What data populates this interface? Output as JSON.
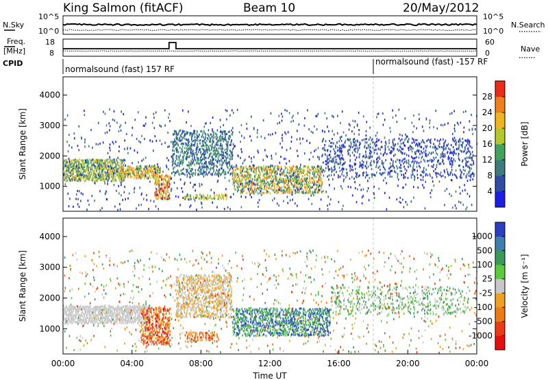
{
  "header": {
    "station": "King Salmon (fitACF)",
    "beam": "Beam 10",
    "date": "20/May/2012"
  },
  "status_panel": {
    "left_labels": {
      "nsky": "N.Sky",
      "freq": "Freq.",
      "freq_unit": "[MHz]",
      "cpid": "CPID"
    },
    "right_labels": {
      "nsearch": "N.Search",
      "nave": "Nave"
    },
    "noise_ticks_left": [
      "10^5",
      "10^0"
    ],
    "noise_ticks_right": [
      "10^5",
      "10^0"
    ],
    "freq_ticks": [
      "18",
      "8"
    ],
    "nave_ticks": [
      "60",
      "0"
    ],
    "cpid_segments": [
      {
        "label": "normalsound (fast) 157 RF",
        "start_hour": 0
      },
      {
        "label": "normalsound (fast) -157 RF",
        "start_hour": 18.0
      }
    ],
    "freq_spike": {
      "start_hour": 6.15,
      "end_hour": 6.55
    }
  },
  "chart_data": [
    {
      "type": "heatmap",
      "name": "Power",
      "ylabel": "Slant Range [km]",
      "ylim": [
        180,
        4600
      ],
      "yticks": [
        "1000",
        "2000",
        "3000",
        "4000"
      ],
      "colorbar": {
        "label": "Power [dB]",
        "ticks": [
          "4",
          "8",
          "12",
          "16",
          "20",
          "24",
          "28"
        ],
        "colors": [
          "#1d1de8",
          "#2e4ea6",
          "#3d7c7c",
          "#44a35a",
          "#b6c72a",
          "#f0b41c",
          "#f08018",
          "#ee2a18"
        ]
      },
      "scatter_regions": [
        {
          "t0": 0.0,
          "t1": 3.5,
          "r0": 1200,
          "r1": 1900,
          "density": 0.75,
          "level": [
            2,
            5
          ]
        },
        {
          "t0": 3.3,
          "t1": 5.6,
          "r0": 1300,
          "r1": 1700,
          "density": 0.7,
          "level": [
            3,
            6
          ]
        },
        {
          "t0": 5.3,
          "t1": 6.2,
          "r0": 600,
          "r1": 1400,
          "density": 0.6,
          "level": [
            4,
            7
          ]
        },
        {
          "t0": 6.3,
          "t1": 9.8,
          "r0": 1400,
          "r1": 2900,
          "density": 0.4,
          "level": [
            1,
            3
          ]
        },
        {
          "t0": 7.0,
          "t1": 9.5,
          "r0": 600,
          "r1": 800,
          "density": 0.5,
          "level": [
            3,
            5
          ]
        },
        {
          "t0": 9.8,
          "t1": 15.0,
          "r0": 800,
          "r1": 1700,
          "density": 0.55,
          "level": [
            2,
            6
          ]
        },
        {
          "t0": 15.0,
          "t1": 23.8,
          "r0": 1300,
          "r1": 2600,
          "density": 0.2,
          "level": [
            0,
            2
          ]
        },
        {
          "t0": 0.0,
          "t1": 24.0,
          "r0": 250,
          "r1": 3600,
          "density": 0.04,
          "level": [
            0,
            2
          ]
        }
      ],
      "marker_hour": 18.0
    },
    {
      "type": "heatmap",
      "name": "Velocity",
      "ylabel": "Slant Range [km]",
      "ylim": [
        180,
        4600
      ],
      "yticks": [
        "1000",
        "2000",
        "3000",
        "4000"
      ],
      "xticks": [
        "00:00",
        "04:00",
        "08:00",
        "12:00",
        "16:00",
        "20:00",
        "00:00"
      ],
      "xlabel": "Time UT",
      "colorbar": {
        "label": "Velocity [m s⁻¹]",
        "ticks": [
          "1000",
          "500",
          "100",
          "25",
          "-25",
          "-100",
          "-500",
          "-1000"
        ],
        "colors": [
          "#2a3fc4",
          "#3e7eb0",
          "#3a9a5a",
          "#5acb3a",
          "#c8c8c8",
          "#f0a020",
          "#ee7a14",
          "#ee3a14",
          "#e80f0f"
        ]
      },
      "scatter_regions": [
        {
          "t0": 0.0,
          "t1": 5.0,
          "r0": 1200,
          "r1": 1800,
          "density": 0.85,
          "level": [
            4,
            4
          ]
        },
        {
          "t0": 4.5,
          "t1": 6.2,
          "r0": 500,
          "r1": 1700,
          "density": 0.55,
          "level": [
            5,
            8
          ]
        },
        {
          "t0": 6.5,
          "t1": 9.8,
          "r0": 1400,
          "r1": 2800,
          "density": 0.5,
          "level": [
            4,
            5
          ]
        },
        {
          "t0": 7.0,
          "t1": 9.0,
          "r0": 600,
          "r1": 900,
          "density": 0.45,
          "level": [
            5,
            7
          ]
        },
        {
          "t0": 9.8,
          "t1": 15.5,
          "r0": 800,
          "r1": 1700,
          "density": 0.55,
          "level": [
            0,
            3
          ]
        },
        {
          "t0": 15.5,
          "t1": 23.5,
          "r0": 1500,
          "r1": 2400,
          "density": 0.2,
          "level": [
            2,
            4
          ]
        },
        {
          "t0": 0.0,
          "t1": 24.0,
          "r0": 250,
          "r1": 3600,
          "density": 0.04,
          "level": [
            2,
            7
          ]
        }
      ],
      "marker_hour": 18.0
    }
  ]
}
